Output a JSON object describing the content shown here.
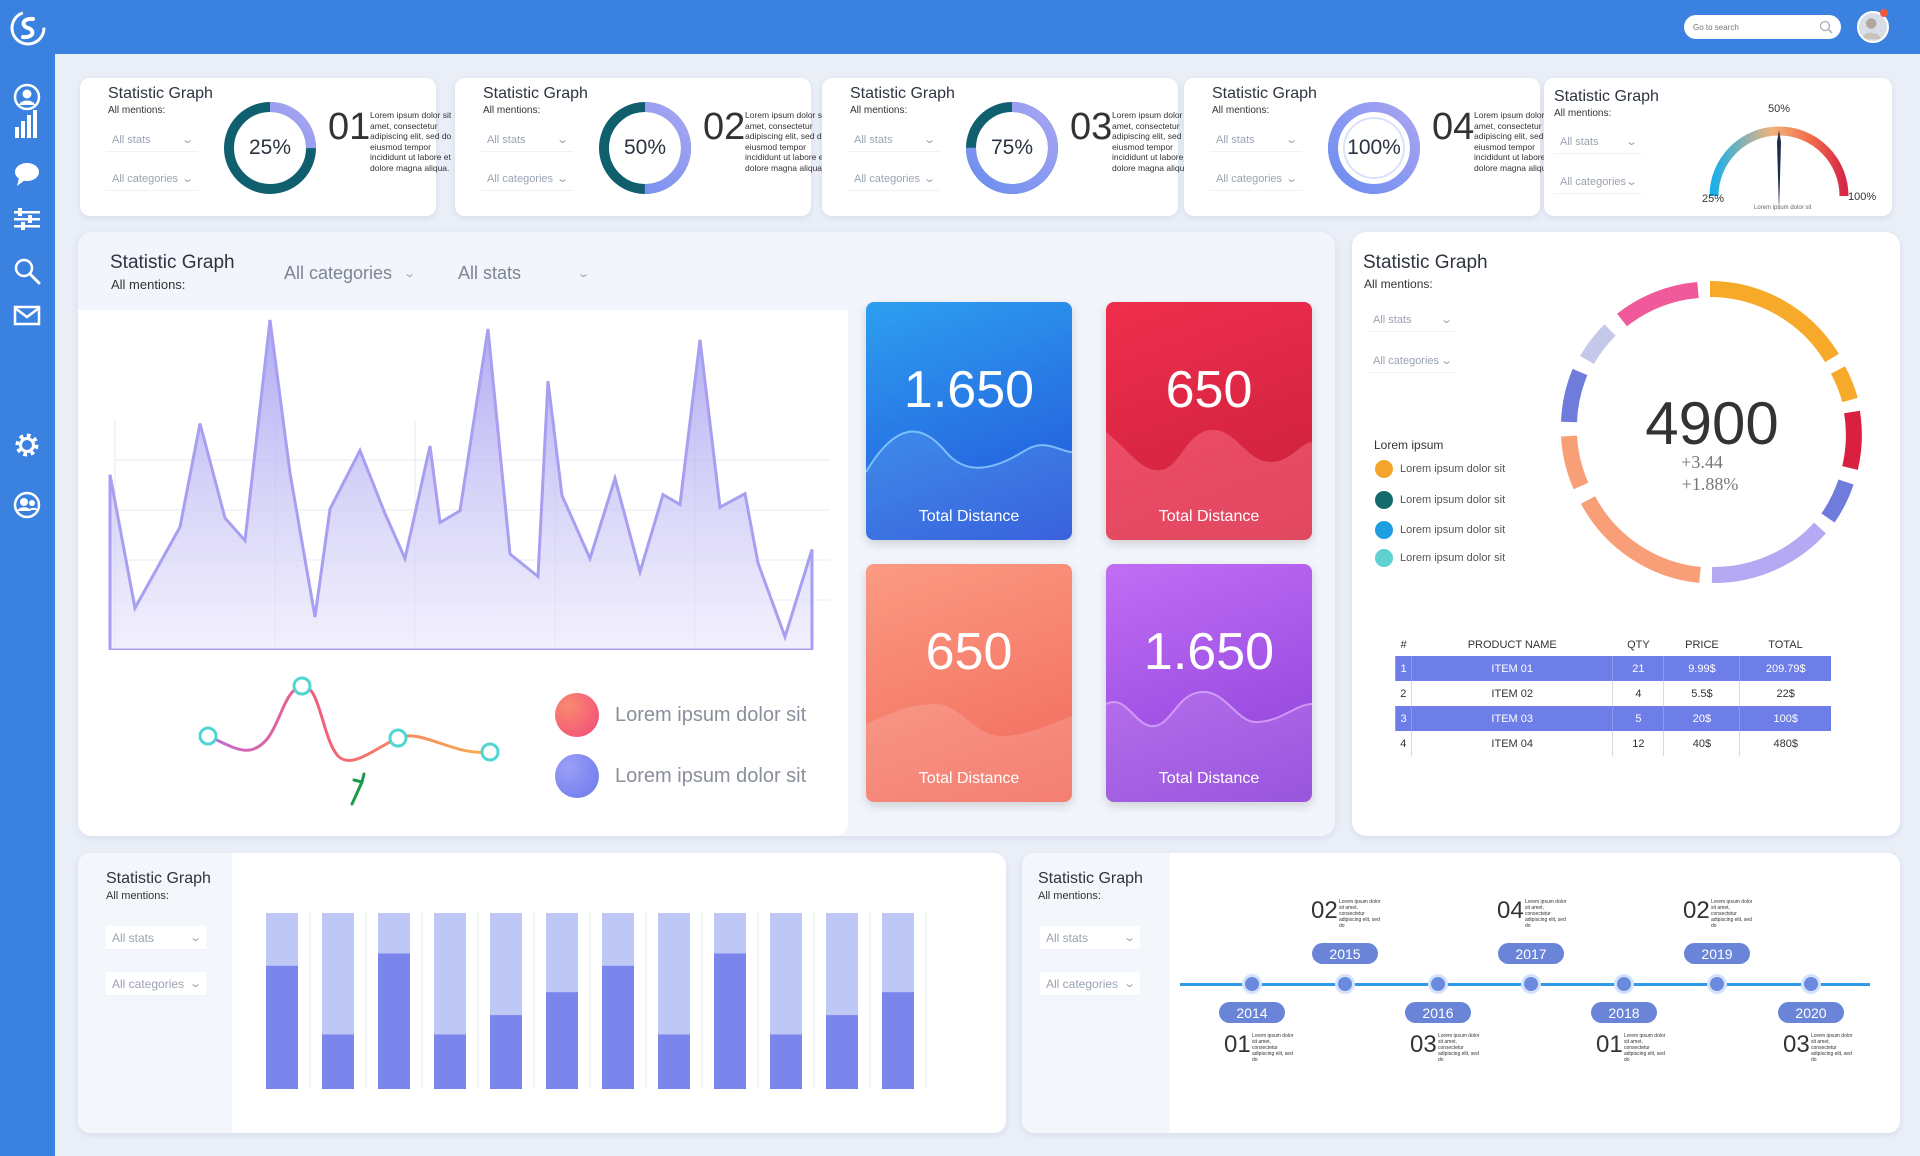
{
  "colors": {
    "topbar": "#3b82e0",
    "accent_purple": "#8f95f0",
    "accent_blue": "#2e6be6",
    "accent_red": "#d62848",
    "accent_orange": "#f6835f",
    "accent_violet": "#9b4fe0"
  },
  "nav": {
    "logo": "logo-s",
    "icons": [
      "user-icon",
      "bar-chart-icon",
      "chat-icon",
      "sliders-icon",
      "search-icon",
      "mail-icon",
      "gear-icon",
      "users-icon"
    ]
  },
  "header": {
    "search_placeholder": "Go to search"
  },
  "common": {
    "title": "Statistic Graph",
    "sub": "All mentions:",
    "all_stats": "All stats",
    "all_categories": "All categories"
  },
  "kpis": [
    {
      "percent": 25,
      "percent_label": "25%",
      "number": "01",
      "text": "Lorem ipsum dolor sit amet, consectetur adipiscing elit, sed do eiusmod tempor incididunt ut labore et dolore magna aliqua."
    },
    {
      "percent": 50,
      "percent_label": "50%",
      "number": "02",
      "text": "Lorem ipsum dolor sit amet, consectetur adipiscing elit, sed do eiusmod tempor incididunt ut labore et dolore magna aliqua."
    },
    {
      "percent": 75,
      "percent_label": "75%",
      "number": "03",
      "text": "Lorem ipsum dolor sit amet, consectetur adipiscing elit, sed do eiusmod tempor incididunt ut labore et dolore magna aliqua."
    },
    {
      "percent": 100,
      "percent_label": "100%",
      "number": "04",
      "text": "Lorem ipsum dolor sit amet, consectetur adipiscing elit, sed do eiusmod tempor incididunt ut labore et dolore magna aliqua."
    }
  ],
  "gauge": {
    "label_left": "25%",
    "label_top": "50%",
    "label_right": "100%",
    "caption": "Lorem ipsum dolor sit"
  },
  "main_panel": {
    "title": "Statistic Graph",
    "sub": "All mentions:",
    "dd_categories": "All categories",
    "dd_stats": "All stats",
    "legend": [
      "Lorem ipsum dolor sit",
      "Lorem ipsum dolor sit"
    ]
  },
  "tiles": [
    {
      "value": "1.650",
      "label": "Total Distance"
    },
    {
      "value": "650",
      "label": "Total Distance"
    },
    {
      "value": "650",
      "label": "Total Distance"
    },
    {
      "value": "1.650",
      "label": "Total Distance"
    }
  ],
  "ring_panel": {
    "title": "Statistic Graph",
    "sub": "All mentions:",
    "dd_stats": "All stats",
    "dd_categories": "All categories",
    "total": "4900",
    "delta1": "+3.44",
    "delta2": "+1.88%",
    "legend_title": "Lorem ipsum",
    "legend": [
      {
        "label": "Lorem ipsum  dolor sit",
        "color": "#f5a52b"
      },
      {
        "label": "Lorem ipsum  dolor sit",
        "color": "#146b6b"
      },
      {
        "label": "Lorem ipsum  dolor sit",
        "color": "#1c9ee0"
      },
      {
        "label": "Lorem ipsum  dolor sit",
        "color": "#5fd1d0"
      }
    ]
  },
  "table": {
    "headers": [
      "#",
      "PRODUCT NAME",
      "QTY",
      "PRICE",
      "TOTAL"
    ],
    "rows": [
      [
        "1",
        "ITEM 01",
        "21",
        "9.99$",
        "209.79$"
      ],
      [
        "2",
        "ITEM 02",
        "4",
        "5.5$",
        "22$"
      ],
      [
        "3",
        "ITEM 03",
        "5",
        "20$",
        "100$"
      ],
      [
        "4",
        "ITEM 04",
        "12",
        "40$",
        "480$"
      ]
    ]
  },
  "bars_panel": {
    "title": "Statistic Graph",
    "sub": "All mentions:",
    "dd_stats": "All stats",
    "dd_categories": "All categories",
    "values": [
      0.7,
      0.31,
      0.77,
      0.31,
      0.42,
      0.55,
      0.7,
      0.31,
      0.77,
      0.31,
      0.42,
      0.55
    ]
  },
  "timeline_panel": {
    "title": "Statistic Graph",
    "sub": "All mentions:",
    "dd_stats": "All stats",
    "dd_categories": "All categories",
    "top": [
      {
        "num": "02",
        "year": "2015"
      },
      {
        "num": "04",
        "year": "2017"
      },
      {
        "num": "02",
        "year": "2019"
      }
    ],
    "bottom": [
      {
        "num": "01",
        "year": "2014"
      },
      {
        "num": "03",
        "year": "2016"
      },
      {
        "num": "01",
        "year": "2018"
      },
      {
        "num": "03",
        "year": "2020"
      }
    ],
    "text": "Lorem ipsum dolor sit amet, consectetur adipiscing elit, sed do"
  }
}
